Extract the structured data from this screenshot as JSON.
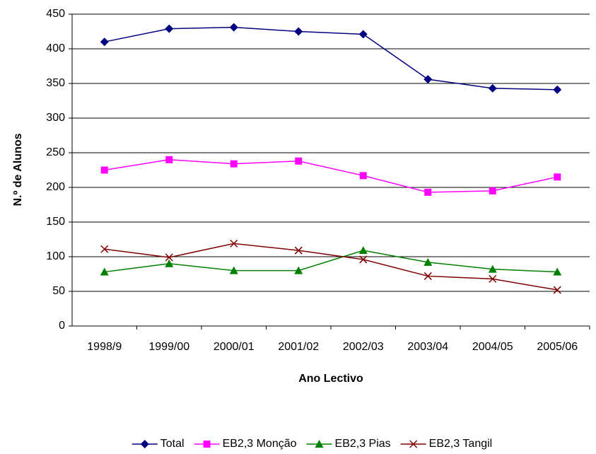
{
  "chart_data": {
    "type": "line",
    "x_label": "Ano Lectivo",
    "y_label": "N.º de Alunos",
    "categories": [
      "1998/9",
      "1999/00",
      "2000/01",
      "2001/02",
      "2002/03",
      "2003/04",
      "2004/05",
      "2005/06"
    ],
    "series": [
      {
        "name": "Total",
        "color": "#000080",
        "marker": "diamond",
        "values": [
          410,
          429,
          431,
          425,
          421,
          356,
          343,
          341
        ]
      },
      {
        "name": "EB2,3 Monção",
        "color": "#ff00ff",
        "marker": "square",
        "values": [
          225,
          240,
          234,
          238,
          217,
          193,
          195,
          215
        ]
      },
      {
        "name": "EB2,3 Pias",
        "color": "#008000",
        "marker": "triangle",
        "values": [
          78,
          90,
          80,
          80,
          109,
          92,
          82,
          78
        ]
      },
      {
        "name": "EB2,3 Tangil",
        "color": "#800000",
        "marker": "x",
        "values": [
          111,
          99,
          119,
          109,
          96,
          72,
          68,
          52
        ]
      }
    ],
    "ylim": [
      0,
      450
    ],
    "yticks": [
      0,
      50,
      100,
      150,
      200,
      250,
      300,
      350,
      400,
      450
    ],
    "grid": true,
    "legend": "bottom"
  }
}
